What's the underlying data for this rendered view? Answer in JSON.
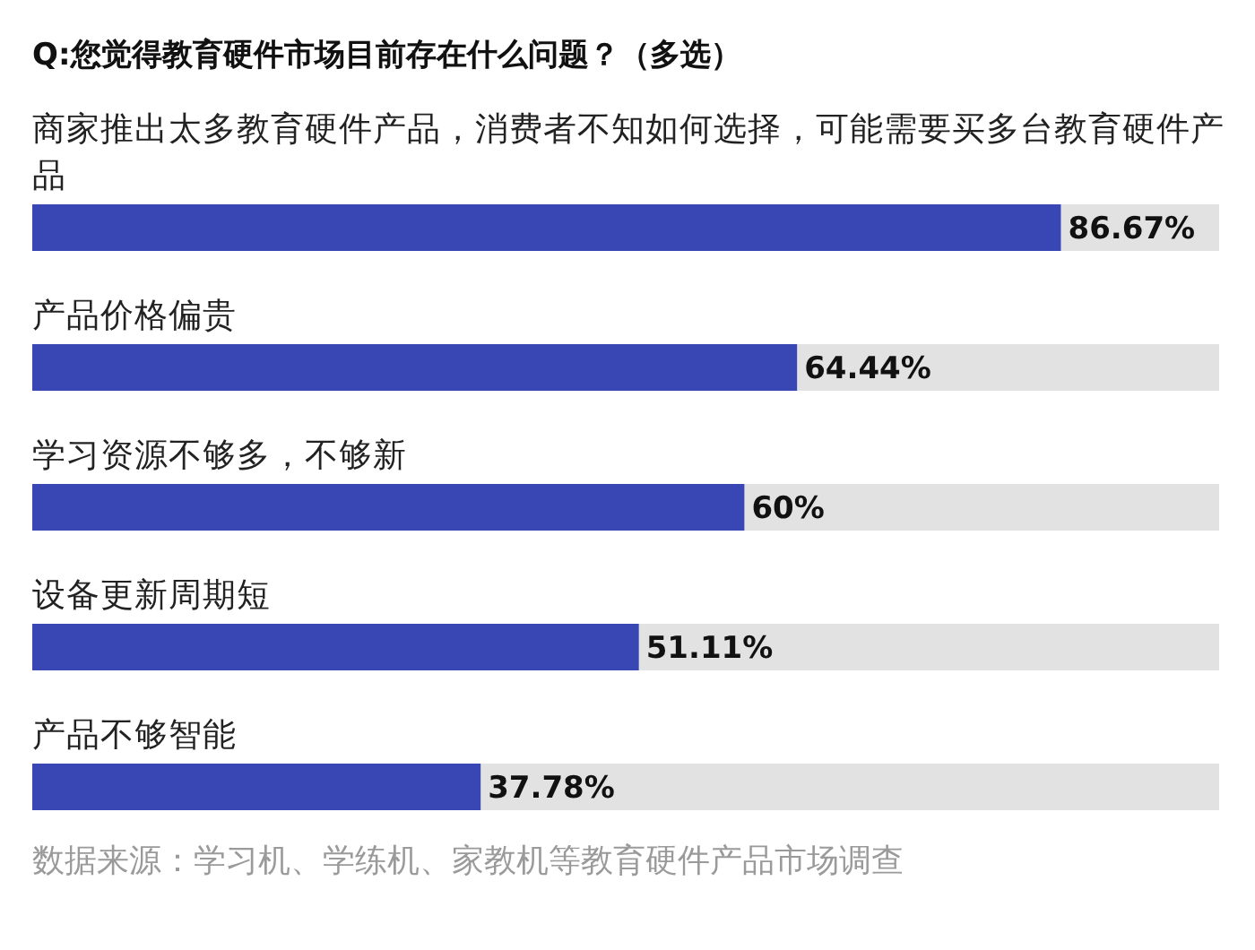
{
  "chart_data": {
    "type": "bar",
    "orientation": "horizontal",
    "title": "Q:您觉得教育硬件市场目前存在什么问题？（多选）",
    "categories": [
      "商家推出太多教育硬件产品，消费者不知如何选择，可能需要买多台教育硬件产品",
      "产品价格偏贵",
      "学习资源不够多，不够新",
      "设备更新周期短",
      "产品不够智能"
    ],
    "values": [
      86.67,
      64.44,
      60,
      51.11,
      37.78
    ],
    "value_labels": [
      "86.67%",
      "64.44%",
      "60%",
      "51.11%",
      "37.78%"
    ],
    "color": "#3847b4",
    "xlim": [
      0,
      100
    ],
    "annotations": [
      "数据来源：学习机、学练机、家教机等教育硬件产品市场调查"
    ]
  }
}
